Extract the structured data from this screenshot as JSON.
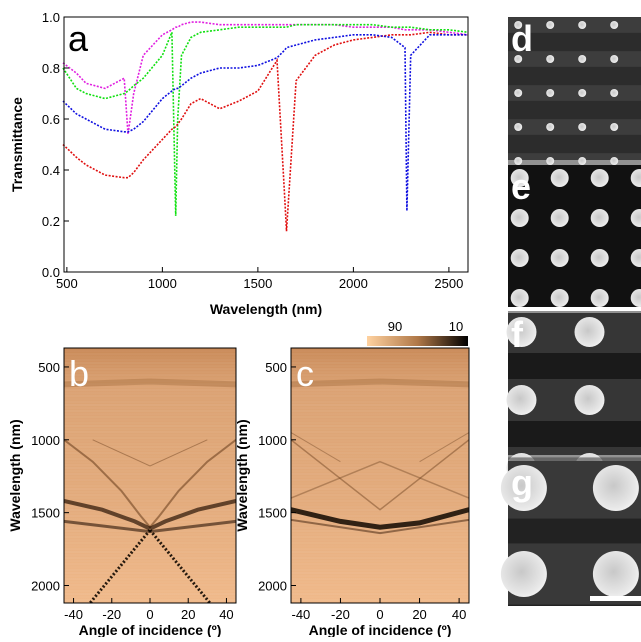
{
  "chart_data": [
    {
      "type": "line",
      "label": "a",
      "xlabel": "Wavelength (nm)",
      "ylabel": "Transmittance",
      "xlim": [
        485,
        2600
      ],
      "xticks": [
        500,
        1000,
        1500,
        2000,
        2500
      ],
      "ylim": [
        0,
        1
      ],
      "yticks": [
        {
          "value": 0,
          "label": "0.0"
        },
        0.2,
        0.4,
        0.6,
        0.8,
        {
          "value": 1,
          "label": "1.0"
        }
      ],
      "x": [
        480,
        550,
        600,
        700,
        800,
        820,
        850,
        900,
        1000,
        1050,
        1070,
        1080,
        1100,
        1150,
        1200,
        1300,
        1400,
        1500,
        1600,
        1640,
        1650,
        1700,
        1800,
        1900,
        2000,
        2100,
        2200,
        2270,
        2280,
        2300,
        2400,
        2500,
        2600
      ],
      "series": [
        {
          "color": "#e020e0",
          "values": [
            0.82,
            0.78,
            0.74,
            0.72,
            0.76,
            0.54,
            0.7,
            0.85,
            0.93,
            0.95,
            0.96,
            0.96,
            0.97,
            0.98,
            0.98,
            0.97,
            0.97,
            0.97,
            0.97,
            0.97,
            0.97,
            0.97,
            0.97,
            0.97,
            0.96,
            0.96,
            0.96,
            0.95,
            0.95,
            0.95,
            0.95,
            0.94,
            0.93
          ]
        },
        {
          "color": "#10e010",
          "values": [
            0.8,
            0.72,
            0.7,
            0.68,
            0.7,
            0.71,
            0.73,
            0.76,
            0.85,
            0.94,
            0.22,
            0.6,
            0.85,
            0.92,
            0.94,
            0.95,
            0.96,
            0.96,
            0.96,
            0.96,
            0.96,
            0.97,
            0.97,
            0.97,
            0.97,
            0.97,
            0.96,
            0.96,
            0.96,
            0.96,
            0.95,
            0.95,
            0.94
          ]
        },
        {
          "color": "#e01010",
          "values": [
            0.5,
            0.45,
            0.42,
            0.38,
            0.37,
            0.37,
            0.39,
            0.44,
            0.52,
            0.56,
            0.57,
            0.58,
            0.6,
            0.66,
            0.68,
            0.64,
            0.67,
            0.71,
            0.83,
            0.3,
            0.16,
            0.75,
            0.85,
            0.89,
            0.91,
            0.92,
            0.93,
            0.93,
            0.93,
            0.93,
            0.94,
            0.93,
            0.93
          ]
        },
        {
          "color": "#1010e0",
          "values": [
            0.67,
            0.62,
            0.6,
            0.56,
            0.55,
            0.55,
            0.56,
            0.59,
            0.68,
            0.71,
            0.72,
            0.72,
            0.73,
            0.76,
            0.78,
            0.8,
            0.8,
            0.81,
            0.84,
            0.87,
            0.88,
            0.89,
            0.91,
            0.92,
            0.93,
            0.93,
            0.92,
            0.88,
            0.24,
            0.85,
            0.93,
            0.93,
            0.93
          ]
        }
      ]
    },
    {
      "type": "heatmap",
      "label": "b",
      "xlabel": "Angle of incidence (º)",
      "ylabel": "Wavelength (nm)",
      "xlim": [
        -45,
        45
      ],
      "xticks": [
        -40,
        -20,
        0,
        20,
        40
      ],
      "ylim": [
        2120,
        370
      ],
      "yticks": [
        500,
        1000,
        1500,
        2000
      ]
    },
    {
      "type": "heatmap",
      "label": "c",
      "xlabel": "Angle of incidence (º)",
      "ylabel": "Wavelength (nm)",
      "xlim": [
        -45,
        45
      ],
      "xticks": [
        -40,
        -20,
        0,
        20,
        40
      ],
      "ylim": [
        2120,
        370
      ],
      "yticks": [
        500,
        1000,
        1500,
        2000
      ],
      "colorbar_labels": [
        "90",
        "10"
      ]
    }
  ],
  "image_panels": {
    "labels": [
      "d",
      "e",
      "f",
      "g"
    ]
  }
}
